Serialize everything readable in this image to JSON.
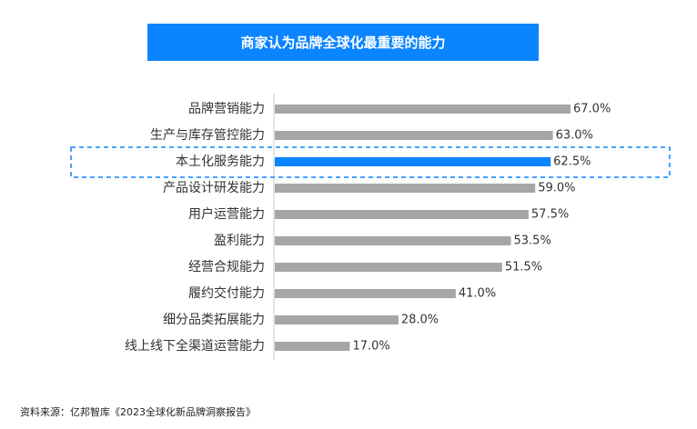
{
  "chart_data": {
    "type": "bar",
    "orientation": "horizontal",
    "title": "商家认为品牌全球化最重要的能力",
    "categories": [
      "品牌营销能力",
      "生产与库存管控能力",
      "本土化服务能力",
      "产品设计研发能力",
      "用户运营能力",
      "盈利能力",
      "经营合规能力",
      "履约交付能力",
      "细分品类拓展能力",
      "线上线下全渠道运营能力"
    ],
    "values": [
      67.0,
      63.0,
      62.5,
      59.0,
      57.5,
      53.5,
      51.5,
      41.0,
      28.0,
      17.0
    ],
    "value_labels": [
      "67.0%",
      "63.0%",
      "62.5%",
      "59.0%",
      "57.5%",
      "53.5%",
      "51.5%",
      "41.0%",
      "28.0%",
      "17.0%"
    ],
    "highlight_index": 2,
    "xlim": [
      0,
      100
    ],
    "grid": false,
    "colors": {
      "bar": "#a6a6a6",
      "highlight_bar": "#0a84ff",
      "highlight_box": "#0a84ff",
      "title_bg": "#0a84ff",
      "title_text": "#ffffff",
      "axis": "#c8c8c8"
    }
  },
  "source_note": "资料来源：亿邦智库《2023全球化新品牌洞察报告》"
}
